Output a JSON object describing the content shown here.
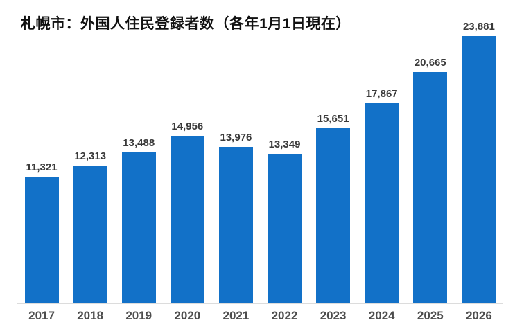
{
  "chart_data": {
    "type": "bar",
    "title": "札幌市：外国人住民登録者数（各年1月1日現在）",
    "categories": [
      "2017",
      "2018",
      "2019",
      "2020",
      "2021",
      "2022",
      "2023",
      "2024",
      "2025",
      "2026"
    ],
    "values": [
      11321,
      12313,
      13488,
      14956,
      13976,
      13349,
      15651,
      17867,
      20665,
      23881
    ],
    "value_labels": [
      "11,321",
      "12,313",
      "13,488",
      "14,956",
      "13,976",
      "13,349",
      "15,651",
      "17,867",
      "20,665",
      "23,881"
    ],
    "xlabel": "",
    "ylabel": "",
    "ylim": [
      0,
      24000
    ],
    "grid": false,
    "legend": false,
    "bar_color": "#1271c8"
  },
  "colors": {
    "background": "#ffffff",
    "bar": "#1271c8",
    "title": "#111111",
    "value_label": "#3a3a3a",
    "tick_label": "#4d4d4d",
    "axis_line": "#dcdcdc"
  }
}
